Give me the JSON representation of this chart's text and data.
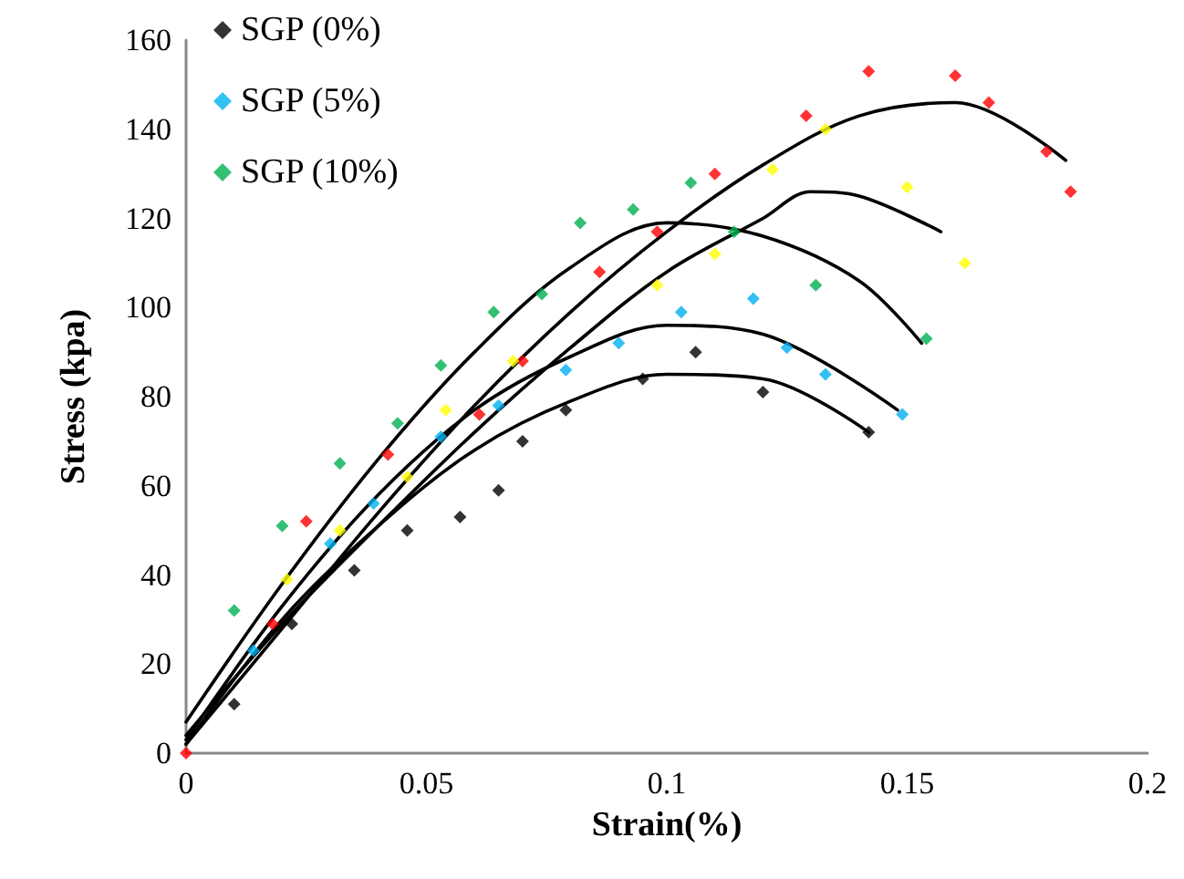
{
  "chart_data": {
    "type": "scatter",
    "xlabel": "Strain(%)",
    "ylabel": "Stress (kpa)",
    "xlim": [
      0,
      0.2
    ],
    "xticks": [
      0,
      0.05,
      0.1,
      0.15,
      0.2
    ],
    "ylim": [
      0,
      160
    ],
    "yticks": [
      0,
      20,
      40,
      60,
      80,
      100,
      120,
      140,
      160
    ],
    "grid": false,
    "legend": "top left",
    "marker": "diamond",
    "series": [
      {
        "name": "SGP (0%)",
        "color": "#000000",
        "x": [
          0.01,
          0.022,
          0.035,
          0.046,
          0.057,
          0.065,
          0.07,
          0.079,
          0.095,
          0.106,
          0.12,
          0.142
        ],
        "values": [
          11,
          29,
          41,
          50,
          53,
          59,
          70,
          77,
          84,
          90,
          81,
          72
        ]
      },
      {
        "name": "SGP (5%)",
        "color": "#00b0f0",
        "x": [
          0.014,
          0.03,
          0.039,
          0.053,
          0.065,
          0.079,
          0.09,
          0.103,
          0.118,
          0.125,
          0.133,
          0.149
        ],
        "values": [
          23,
          47,
          56,
          71,
          78,
          86,
          92,
          99,
          102,
          91,
          85,
          76
        ]
      },
      {
        "name": "SGP (10%)",
        "color": "#00b050",
        "x": [
          0.01,
          0.02,
          0.032,
          0.044,
          0.053,
          0.064,
          0.074,
          0.082,
          0.093,
          0.105,
          0.114,
          0.131,
          0.154
        ],
        "values": [
          32,
          51,
          65,
          74,
          87,
          99,
          103,
          119,
          122,
          128,
          117,
          105,
          93
        ]
      },
      {
        "color": "#ff0000",
        "x": [
          0,
          0.018,
          0.025,
          0.042,
          0.061,
          0.07,
          0.086,
          0.098,
          0.11,
          0.129,
          0.142,
          0.16,
          0.167,
          0.179,
          0.184
        ],
        "values": [
          0,
          29,
          52,
          67,
          76,
          88,
          108,
          117,
          130,
          143,
          153,
          152,
          146,
          135,
          126
        ]
      },
      {
        "color": "#ffff00",
        "x": [
          0.021,
          0.032,
          0.046,
          0.054,
          0.068,
          0.098,
          0.11,
          0.122,
          0.133,
          0.15,
          0.162
        ],
        "values": [
          39,
          50,
          62,
          77,
          88,
          105,
          112,
          131,
          140,
          127,
          110
        ]
      },
      {
        "type": "line",
        "marker": "none",
        "color": "#000000",
        "x": [
          0,
          0.02,
          0.04,
          0.06,
          0.08,
          0.1,
          0.12,
          0.142
        ],
        "values": [
          2,
          30,
          51,
          68,
          79,
          85,
          84,
          72
        ]
      },
      {
        "type": "line",
        "marker": "none",
        "color": "#000000",
        "x": [
          0,
          0.02,
          0.04,
          0.06,
          0.08,
          0.1,
          0.12,
          0.148
        ],
        "values": [
          3,
          33,
          58,
          77,
          89,
          96,
          94,
          77
        ]
      },
      {
        "type": "line",
        "marker": "none",
        "color": "#000000",
        "x": [
          0,
          0.02,
          0.04,
          0.06,
          0.08,
          0.1,
          0.12,
          0.14,
          0.153
        ],
        "values": [
          7,
          38,
          66,
          90,
          109,
          119,
          116,
          106,
          92
        ]
      },
      {
        "type": "line",
        "marker": "none",
        "color": "#000000",
        "x": [
          0,
          0.02,
          0.04,
          0.06,
          0.08,
          0.1,
          0.12,
          0.14,
          0.16,
          0.183
        ],
        "values": [
          2,
          28,
          54,
          78,
          99,
          117,
          132,
          143,
          146,
          133
        ]
      },
      {
        "type": "line",
        "marker": "none",
        "color": "#000000",
        "x": [
          0,
          0.02,
          0.04,
          0.06,
          0.08,
          0.1,
          0.12,
          0.13,
          0.14,
          0.157
        ],
        "values": [
          4,
          29,
          51,
          72,
          91,
          108,
          120,
          126,
          125,
          117
        ]
      }
    ]
  }
}
